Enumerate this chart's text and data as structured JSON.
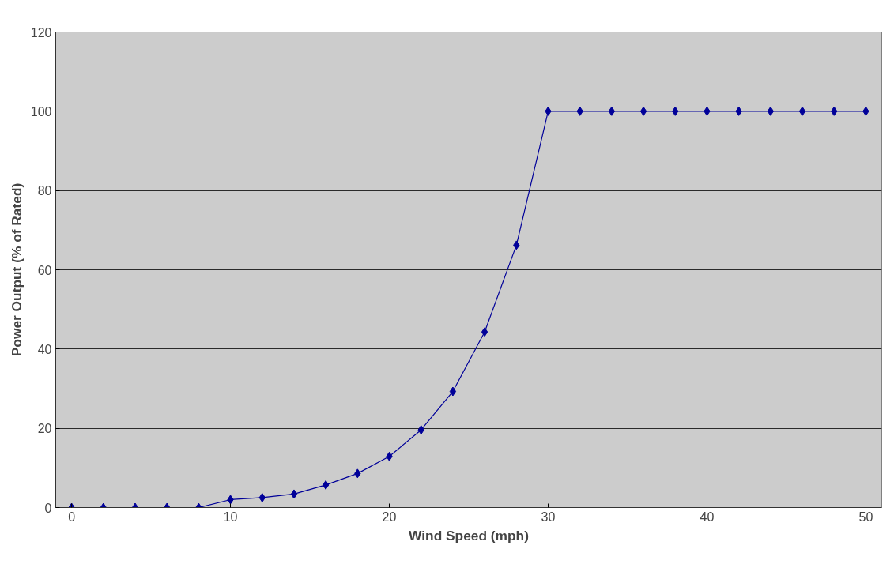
{
  "chart_data": {
    "type": "line",
    "xlabel": "Wind Speed (mph)",
    "ylabel": "Power Output (% of Rated)",
    "x": [
      0,
      2,
      4,
      6,
      8,
      10,
      12,
      14,
      16,
      18,
      20,
      22,
      24,
      26,
      28,
      30,
      32,
      34,
      36,
      38,
      40,
      42,
      44,
      46,
      48,
      50
    ],
    "series": [
      {
        "color": "#000099",
        "values": [
          0,
          0,
          0,
          0,
          0,
          2,
          2.5,
          3.4,
          5.7,
          8.6,
          12.9,
          19.6,
          29.3,
          44.3,
          66.2,
          100,
          100,
          100,
          100,
          100,
          100,
          100,
          100,
          100,
          100,
          100
        ]
      }
    ],
    "xlim": [
      -1,
      51
    ],
    "xticks": [
      0,
      10,
      20,
      30,
      40,
      50
    ],
    "ylim": [
      0,
      120
    ],
    "yticks": [
      0,
      20,
      40,
      60,
      80,
      100,
      120
    ],
    "grid": "y",
    "marker": "diamond",
    "line_style": "solid"
  }
}
